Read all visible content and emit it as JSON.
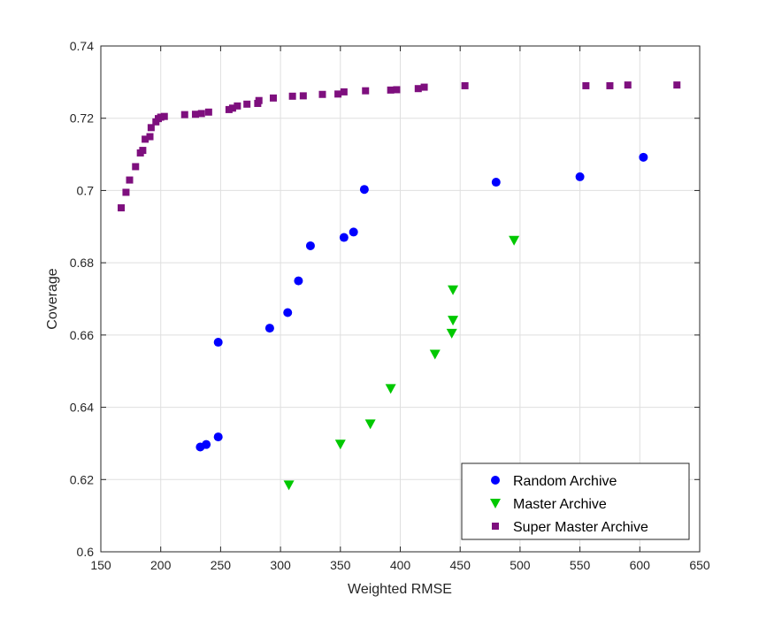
{
  "chart_data": {
    "type": "scatter",
    "title": "",
    "xlabel": "Weighted RMSE",
    "ylabel": "Coverage",
    "xlim": [
      150,
      650
    ],
    "ylim": [
      0.6,
      0.74
    ],
    "xticks": [
      150,
      200,
      250,
      300,
      350,
      400,
      450,
      500,
      550,
      600,
      650
    ],
    "xtick_labels": [
      "150",
      "200",
      "250",
      "300",
      "350",
      "400",
      "450",
      "500",
      "550",
      "600",
      "650"
    ],
    "yticks": [
      0.6,
      0.62,
      0.64,
      0.66,
      0.68,
      0.7,
      0.72,
      0.74
    ],
    "ytick_labels": [
      "0.6",
      "0.62",
      "0.64",
      "0.66",
      "0.68",
      "0.7",
      "0.72",
      "0.74"
    ],
    "grid": true,
    "legend_position": "bottom-right",
    "series": [
      {
        "name": "Random Archive",
        "marker": "circle",
        "color": "#0000ff",
        "points": [
          [
            233,
            0.629
          ],
          [
            238,
            0.6297
          ],
          [
            248,
            0.6318
          ],
          [
            248,
            0.658
          ],
          [
            291,
            0.6619
          ],
          [
            306,
            0.6662
          ],
          [
            315,
            0.675
          ],
          [
            325,
            0.6847
          ],
          [
            353,
            0.687
          ],
          [
            361,
            0.6885
          ],
          [
            370,
            0.7003
          ],
          [
            480,
            0.7023
          ],
          [
            550,
            0.7038
          ],
          [
            603,
            0.7092
          ]
        ]
      },
      {
        "name": "Master Archive",
        "marker": "triangle-down",
        "color": "#00c800",
        "points": [
          [
            307,
            0.6185
          ],
          [
            350,
            0.6298
          ],
          [
            375,
            0.6354
          ],
          [
            392,
            0.6452
          ],
          [
            429,
            0.6547
          ],
          [
            443,
            0.6605
          ],
          [
            444,
            0.6641
          ],
          [
            444,
            0.6725
          ],
          [
            495,
            0.6862
          ]
        ]
      },
      {
        "name": "Super Master Archive",
        "marker": "square",
        "color": "#7e0f7e",
        "points": [
          [
            167,
            0.6952
          ],
          [
            171,
            0.6995
          ],
          [
            174,
            0.7029
          ],
          [
            179,
            0.7066
          ],
          [
            183,
            0.7104
          ],
          [
            185,
            0.7111
          ],
          [
            187,
            0.7142
          ],
          [
            191,
            0.7149
          ],
          [
            192,
            0.7174
          ],
          [
            196,
            0.719
          ],
          [
            198,
            0.7199
          ],
          [
            200,
            0.7203
          ],
          [
            203,
            0.7205
          ],
          [
            220,
            0.721
          ],
          [
            229,
            0.7211
          ],
          [
            234,
            0.7213
          ],
          [
            240,
            0.7217
          ],
          [
            257,
            0.7224
          ],
          [
            260,
            0.7228
          ],
          [
            264,
            0.7234
          ],
          [
            272,
            0.7239
          ],
          [
            281,
            0.7241
          ],
          [
            282,
            0.7249
          ],
          [
            294,
            0.7256
          ],
          [
            310,
            0.7261
          ],
          [
            319,
            0.7262
          ],
          [
            335,
            0.7266
          ],
          [
            348,
            0.7267
          ],
          [
            353,
            0.7273
          ],
          [
            371,
            0.7276
          ],
          [
            392,
            0.7278
          ],
          [
            397,
            0.7279
          ],
          [
            415,
            0.7282
          ],
          [
            420,
            0.7286
          ],
          [
            454,
            0.729
          ],
          [
            555,
            0.729
          ],
          [
            575,
            0.729
          ],
          [
            590,
            0.7292
          ],
          [
            631,
            0.7292
          ]
        ]
      }
    ]
  }
}
